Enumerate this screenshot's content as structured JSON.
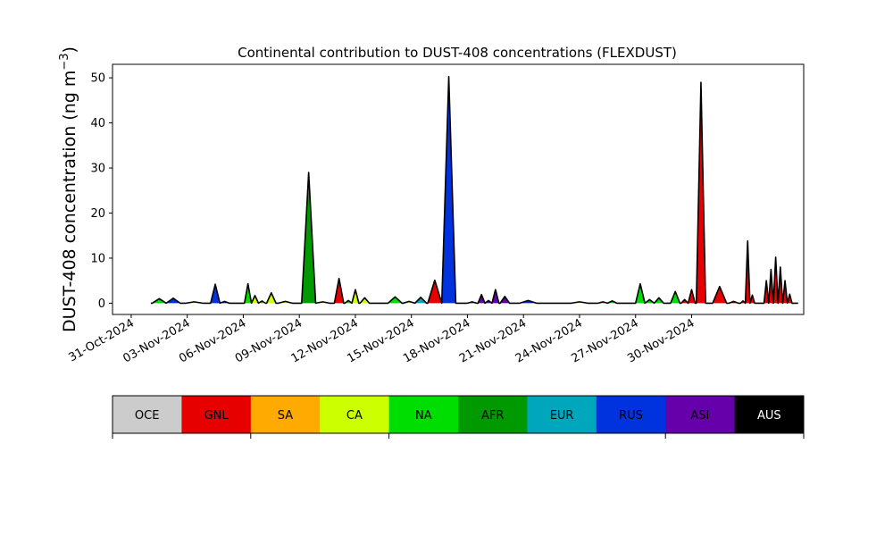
{
  "chart_data": {
    "type": "area",
    "title": "Continental contribution to DUST-408 concentrations (FLEXDUST)",
    "xlabel": "",
    "ylabel_main": "DUST-408 concentration (ng m",
    "ylabel_sup": "−3",
    "ylabel_close": ")",
    "xlim": [
      "2024-10-30",
      "2024-12-06"
    ],
    "ylim": [
      -2.5,
      53
    ],
    "yticks": [
      0,
      10,
      20,
      30,
      40,
      50
    ],
    "xticks": [
      "2024-10-31",
      "2024-11-03",
      "2024-11-06",
      "2024-11-09",
      "2024-11-12",
      "2024-11-15",
      "2024-11-18",
      "2024-11-21",
      "2024-11-24",
      "2024-11-27",
      "2024-11-30"
    ],
    "xtick_labels": [
      "31-Oct-2024",
      "03-Nov-2024",
      "06-Nov-2024",
      "09-Nov-2024",
      "12-Nov-2024",
      "15-Nov-2024",
      "18-Nov-2024",
      "21-Nov-2024",
      "24-Nov-2024",
      "27-Nov-2024",
      "30-Nov-2024"
    ],
    "total_line_color": "#000000",
    "events": [
      {
        "t": "2024-11-01T12:00",
        "source": "NA",
        "value": 1.0
      },
      {
        "t": "2024-11-02T06:00",
        "source": "RUS",
        "value": 1.1
      },
      {
        "t": "2024-11-03T09:00",
        "source": "CA",
        "value": 0.3
      },
      {
        "t": "2024-11-04T12:00",
        "source": "RUS",
        "value": 4.2
      },
      {
        "t": "2024-11-05T00:00",
        "source": "RUS",
        "value": 0.4
      },
      {
        "t": "2024-11-06T06:00",
        "source": "NA",
        "value": 4.3
      },
      {
        "t": "2024-11-06T15:00",
        "source": "CA",
        "value": 1.7
      },
      {
        "t": "2024-11-07T00:00",
        "source": "NA",
        "value": 0.5
      },
      {
        "t": "2024-11-07T12:00",
        "source": "CA",
        "value": 2.3
      },
      {
        "t": "2024-11-08T06:00",
        "source": "CA",
        "value": 0.4
      },
      {
        "t": "2024-11-09T12:00",
        "source": "AFR",
        "value": 29.0
      },
      {
        "t": "2024-11-10T06:00",
        "source": "CA",
        "value": 0.3
      },
      {
        "t": "2024-11-11T03:00",
        "source": "GNL",
        "value": 5.5
      },
      {
        "t": "2024-11-11T15:00",
        "source": "NA",
        "value": 0.6
      },
      {
        "t": "2024-11-12T00:00",
        "source": "CA",
        "value": 3.0
      },
      {
        "t": "2024-11-12T12:00",
        "source": "CA",
        "value": 1.2
      },
      {
        "t": "2024-11-14T03:00",
        "source": "NA",
        "value": 1.4
      },
      {
        "t": "2024-11-14T21:00",
        "source": "CA",
        "value": 0.4
      },
      {
        "t": "2024-11-15T12:00",
        "source": "EUR",
        "value": 1.3
      },
      {
        "t": "2024-11-16T06:00",
        "source": "GNL",
        "value": 5.1
      },
      {
        "t": "2024-11-17T00:00",
        "source": "RUS",
        "value": 50.3
      },
      {
        "t": "2024-11-18T06:00",
        "source": "RUS",
        "value": 0.3
      },
      {
        "t": "2024-11-18T18:00",
        "source": "ASI",
        "value": 1.9
      },
      {
        "t": "2024-11-19T03:00",
        "source": "ASI",
        "value": 0.6
      },
      {
        "t": "2024-11-19T12:00",
        "source": "ASI",
        "value": 3.0
      },
      {
        "t": "2024-11-20T00:00",
        "source": "ASI",
        "value": 1.5
      },
      {
        "t": "2024-11-21T06:00",
        "source": "RUS",
        "value": 0.6
      },
      {
        "t": "2024-11-24T00:00",
        "source": "CA",
        "value": 0.3
      },
      {
        "t": "2024-11-25T06:00",
        "source": "NA",
        "value": 0.3
      },
      {
        "t": "2024-11-25T18:00",
        "source": "NA",
        "value": 0.5
      },
      {
        "t": "2024-11-27T06:00",
        "source": "NA",
        "value": 4.3
      },
      {
        "t": "2024-11-27T18:00",
        "source": "NA",
        "value": 0.8
      },
      {
        "t": "2024-11-28T06:00",
        "source": "NA",
        "value": 1.2
      },
      {
        "t": "2024-11-29T03:00",
        "source": "NA",
        "value": 2.6
      },
      {
        "t": "2024-11-29T15:00",
        "source": "GNL",
        "value": 0.8
      },
      {
        "t": "2024-11-30T00:00",
        "source": "GNL",
        "value": 3.0
      },
      {
        "t": "2024-11-30T12:00",
        "source": "GNL",
        "value": 49.0
      },
      {
        "t": "2024-12-01T12:00",
        "source": "GNL",
        "value": 3.7
      },
      {
        "t": "2024-12-02T06:00",
        "source": "GNL",
        "value": 0.4
      },
      {
        "t": "2024-12-02T18:00",
        "source": "GNL",
        "value": 0.5
      },
      {
        "t": "2024-12-03T00:00",
        "source": "GNL",
        "value": 13.8
      },
      {
        "t": "2024-12-03T06:00",
        "source": "GNL",
        "value": 1.8
      },
      {
        "t": "2024-12-04T00:00",
        "source": "GNL",
        "value": 5.0
      },
      {
        "t": "2024-12-04T06:00",
        "source": "GNL",
        "value": 7.5
      },
      {
        "t": "2024-12-04T12:00",
        "source": "GNL",
        "value": 10.2
      },
      {
        "t": "2024-12-04T18:00",
        "source": "GNL",
        "value": 8.0
      },
      {
        "t": "2024-12-05T00:00",
        "source": "GNL",
        "value": 5.0
      },
      {
        "t": "2024-12-05T06:00",
        "source": "GNL",
        "value": 2.0
      }
    ],
    "legend": [
      {
        "label": "OCE",
        "color": "#cccccc",
        "text_color": "#000000"
      },
      {
        "label": "GNL",
        "color": "#e60000",
        "text_color": "#000000"
      },
      {
        "label": "SA",
        "color": "#ffaa00",
        "text_color": "#000000"
      },
      {
        "label": "CA",
        "color": "#ccff00",
        "text_color": "#000000"
      },
      {
        "label": "NA",
        "color": "#00dd00",
        "text_color": "#000000"
      },
      {
        "label": "AFR",
        "color": "#009900",
        "text_color": "#000000"
      },
      {
        "label": "EUR",
        "color": "#00a6bb",
        "text_color": "#000000"
      },
      {
        "label": "RUS",
        "color": "#0033dd",
        "text_color": "#000000"
      },
      {
        "label": "ASI",
        "color": "#6600aa",
        "text_color": "#000000"
      },
      {
        "label": "AUS",
        "color": "#000000",
        "text_color": "#ffffff"
      }
    ],
    "legend_placement": "below"
  }
}
